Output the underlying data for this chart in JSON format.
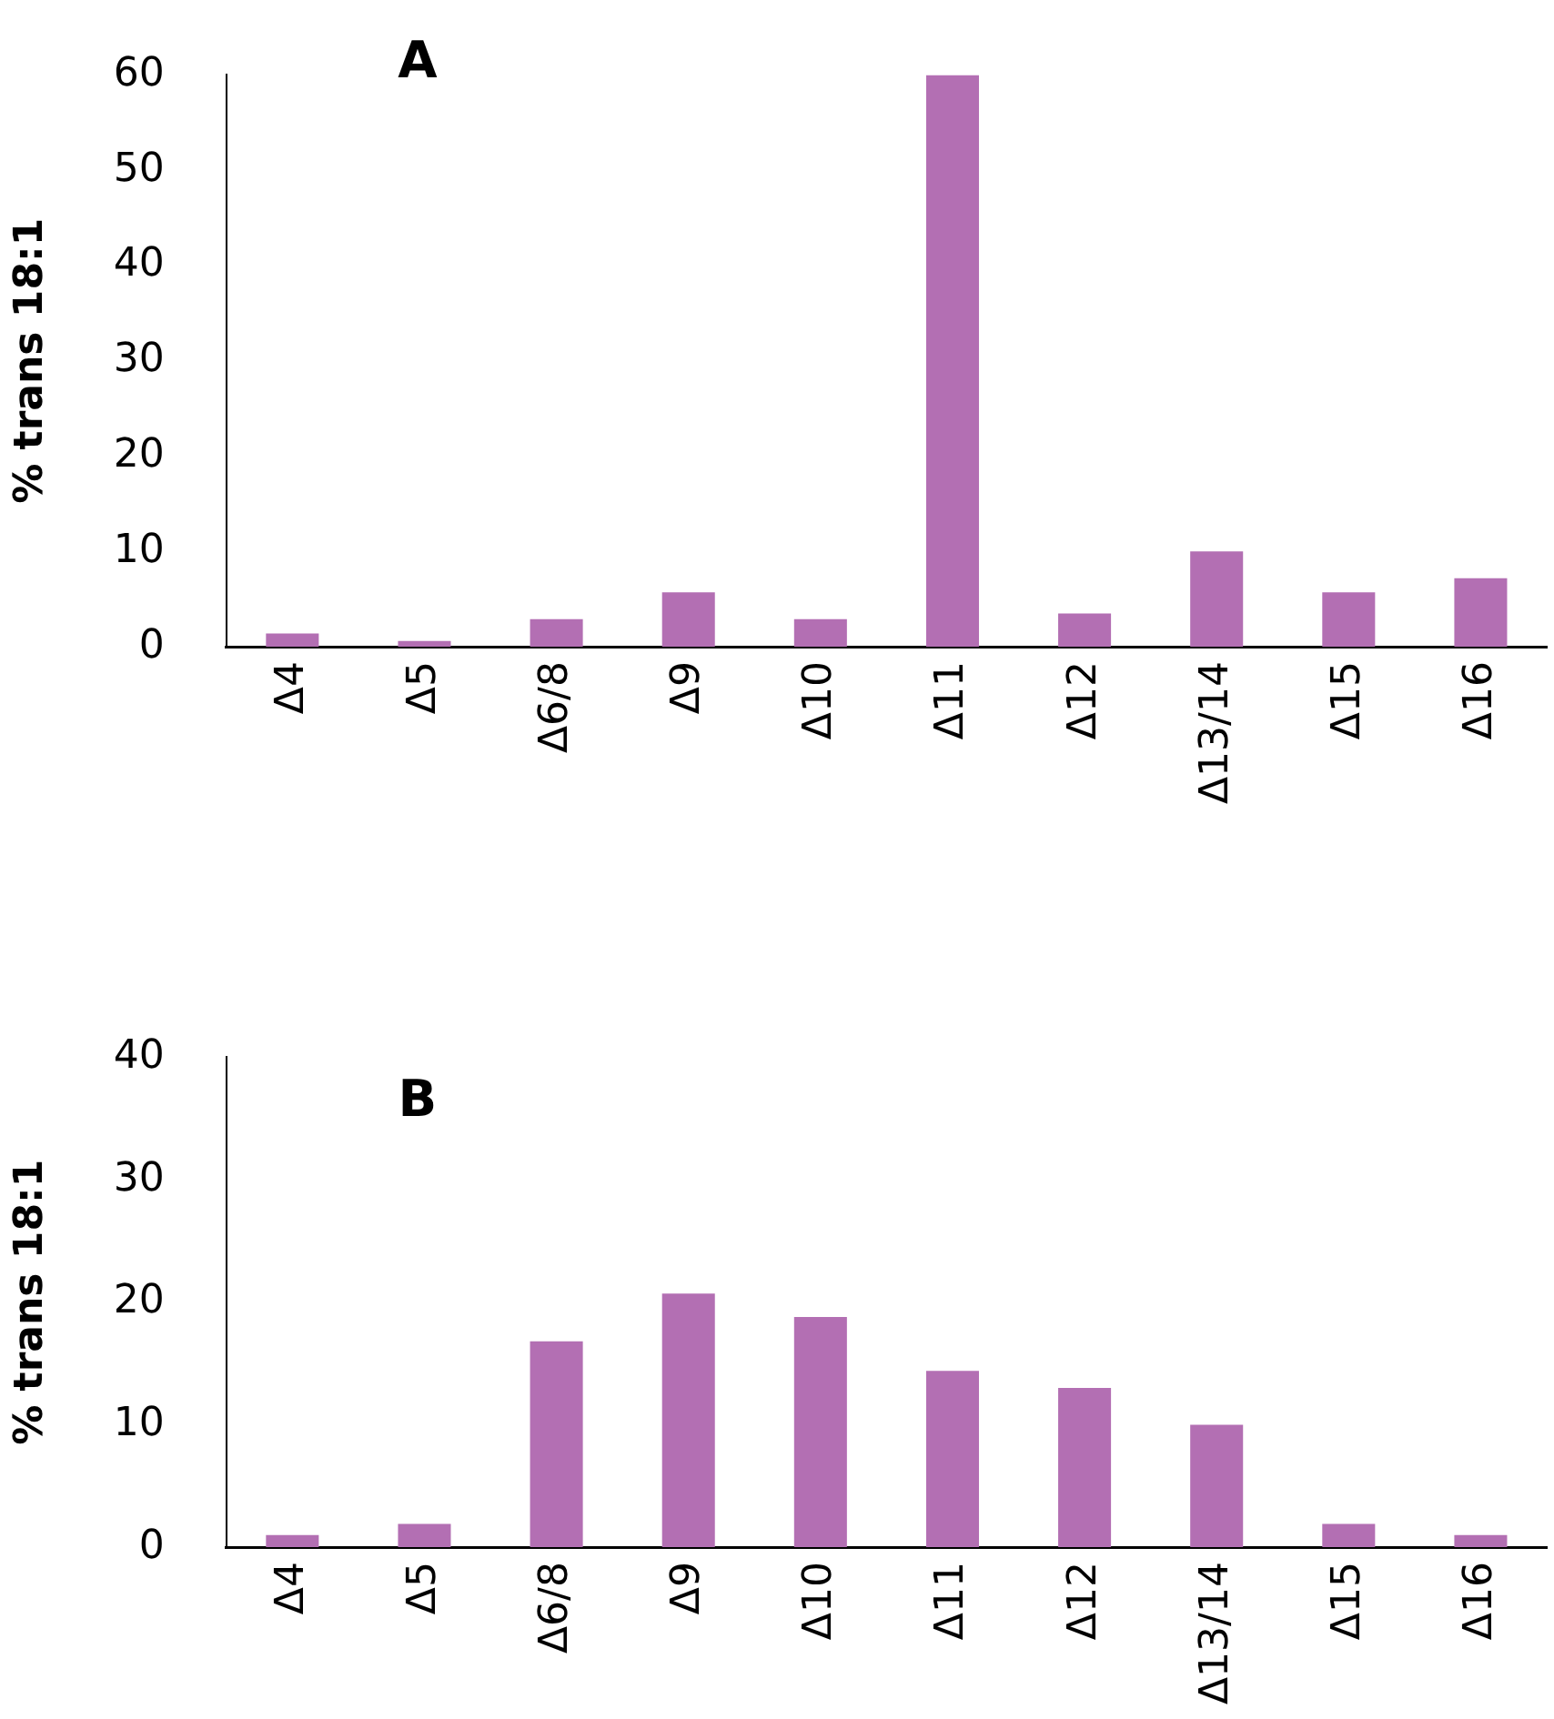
{
  "chart_data": [
    {
      "type": "bar",
      "title": "A",
      "ylabel": "% trans 18:1",
      "categories": [
        "Δ4",
        "Δ5",
        "Δ6/8",
        "Δ9",
        "Δ10",
        "Δ11",
        "Δ12",
        "Δ13/14",
        "Δ15",
        "Δ16"
      ],
      "series": [
        {
          "color": "#b36fb3",
          "values": [
            1.4,
            0.6,
            2.9,
            5.7,
            2.9,
            60,
            3.5,
            10,
            5.7,
            7.2
          ]
        }
      ],
      "ylim": [
        0,
        60
      ],
      "yticks": [
        0,
        10,
        20,
        30,
        40,
        50,
        60
      ],
      "grid": false,
      "legend": false
    },
    {
      "type": "bar",
      "title": "B",
      "ylabel": "% trans 18:1",
      "categories": [
        "Δ4",
        "Δ5",
        "Δ6/8",
        "Δ9",
        "Δ10",
        "Δ11",
        "Δ12",
        "Δ13/14",
        "Δ15",
        "Δ16"
      ],
      "series": [
        {
          "color": "#b36fb3",
          "values": [
            1,
            1.9,
            16.8,
            20.7,
            18.8,
            14.4,
            13,
            10,
            1.9,
            1
          ]
        }
      ],
      "ylim": [
        0,
        40
      ],
      "yticks": [
        0,
        10,
        20,
        30,
        40
      ],
      "grid": false,
      "legend": false
    }
  ]
}
